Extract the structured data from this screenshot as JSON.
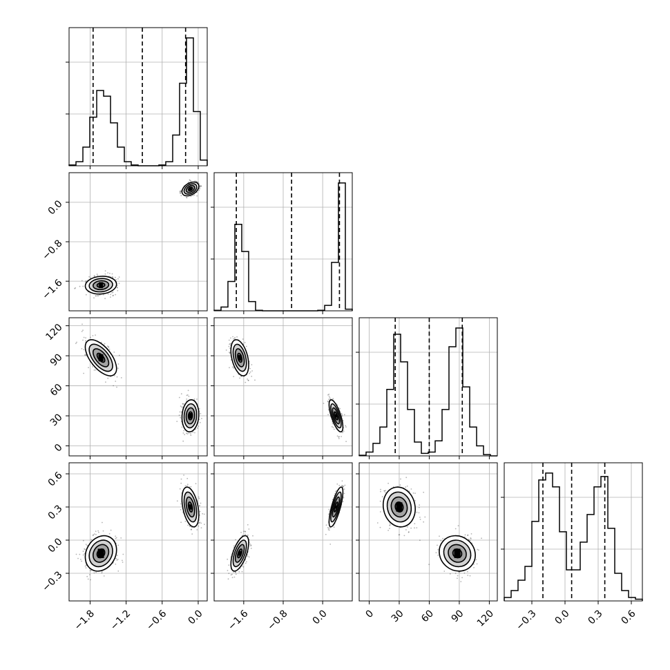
{
  "chart_data": {
    "type": "corner",
    "grid": true,
    "variables": [
      {
        "range": [
          -2.15,
          0.15
        ],
        "ticks": [
          -1.8,
          -1.2,
          -0.6,
          0.0
        ],
        "tick_labels": [
          "−1.8",
          "−1.2",
          "−0.6",
          "0.0"
        ],
        "quantiles": [
          -1.75,
          -0.93,
          -0.21
        ],
        "hist": {
          "edges": [
            -2.15,
            -2.035,
            -1.92,
            -1.805,
            -1.69,
            -1.575,
            -1.46,
            -1.345,
            -1.23,
            -1.115,
            -1.0,
            -0.885,
            -0.77,
            -0.655,
            -0.54,
            -0.425,
            -0.31,
            -0.195,
            -0.08,
            0.035,
            0.15
          ],
          "counts": [
            0.1,
            0.5,
            2.3,
            6.0,
            9.3,
            8.6,
            5.3,
            2.3,
            0.5,
            0.1,
            0.0,
            0.0,
            0.0,
            0.1,
            0.5,
            3.8,
            10.2,
            15.8,
            6.7,
            0.7
          ]
        }
      },
      {
        "range": [
          -2.2,
          0.6
        ],
        "ticks": [
          -1.6,
          -0.8,
          0.0
        ],
        "tick_labels": [
          "−1.6",
          "−0.8",
          "0.0"
        ],
        "quantiles": [
          -1.75,
          -0.63,
          0.34
        ],
        "hist": {
          "edges": [
            -2.2,
            -2.06,
            -1.92,
            -1.78,
            -1.64,
            -1.5,
            -1.36,
            -1.22,
            -1.08,
            -0.94,
            -0.8,
            -0.66,
            -0.52,
            -0.38,
            -0.24,
            -0.1,
            0.04,
            0.18,
            0.32,
            0.46,
            0.6
          ],
          "counts": [
            0.1,
            0.7,
            5.4,
            15.9,
            10.9,
            1.7,
            0.1,
            0.0,
            0.0,
            0.0,
            0.0,
            0.0,
            0.0,
            0.0,
            0.0,
            0.1,
            1.0,
            8.9,
            23.5,
            0.3
          ]
        }
      },
      {
        "range": [
          -10,
          128
        ],
        "ticks": [
          0,
          30,
          60,
          90,
          120
        ],
        "tick_labels": [
          "0",
          "30",
          "60",
          "90",
          "120"
        ],
        "quantiles": [
          26,
          60,
          93
        ],
        "hist": {
          "edges": [
            -10,
            -3.1,
            3.8,
            10.7,
            17.6,
            24.5,
            31.4,
            38.3,
            45.2,
            52.1,
            59,
            65.9,
            72.8,
            79.7,
            86.6,
            93.5,
            100.4,
            107.3,
            114.2,
            121.1,
            128
          ],
          "counts": [
            0.05,
            0.3,
            1.0,
            2.3,
            5.3,
            9.7,
            7.5,
            3.7,
            1.1,
            0.2,
            0.3,
            1.2,
            3.7,
            8.7,
            10.2,
            5.5,
            2.3,
            0.8,
            0.1,
            0.0
          ]
        }
      },
      {
        "range": [
          -0.55,
          0.7
        ],
        "ticks": [
          -0.3,
          0.0,
          0.3,
          0.6
        ],
        "tick_labels": [
          "−0.3",
          "0.0",
          "0.3",
          "0.6"
        ],
        "quantiles": [
          -0.2,
          0.06,
          0.36
        ],
        "hist": {
          "edges": [
            -0.55,
            -0.4875,
            -0.425,
            -0.3625,
            -0.3,
            -0.2375,
            -0.175,
            -0.1125,
            -0.05,
            0.0125,
            0.075,
            0.1375,
            0.2,
            0.2625,
            0.325,
            0.3875,
            0.45,
            0.5125,
            0.575,
            0.6375,
            0.7
          ],
          "counts": [
            0.1,
            0.3,
            0.6,
            1.0,
            2.3,
            3.5,
            3.7,
            3.3,
            2.0,
            0.9,
            0.9,
            1.7,
            2.5,
            3.3,
            3.6,
            2.1,
            0.8,
            0.3,
            0.1,
            0.05
          ]
        }
      }
    ],
    "modes": [
      {
        "weight": 0.5,
        "mean": [
          -1.62,
          -1.68,
          88,
          -0.12
        ],
        "sd": [
          0.13,
          0.09,
          9,
          0.08
        ]
      },
      {
        "weight": 0.5,
        "mean": [
          -0.13,
          0.27,
          30,
          0.3
        ],
        "sd": [
          0.07,
          0.07,
          8,
          0.09
        ]
      }
    ],
    "correlations": {
      "0-1": [
        0.1,
        0.4
      ],
      "0-2": [
        -0.6,
        0.1
      ],
      "0-3": [
        0.2,
        -0.4
      ],
      "1-2": [
        -0.4,
        -0.7
      ],
      "1-3": [
        0.6,
        0.75
      ],
      "2-3": [
        -0.1,
        -0.1
      ]
    }
  }
}
